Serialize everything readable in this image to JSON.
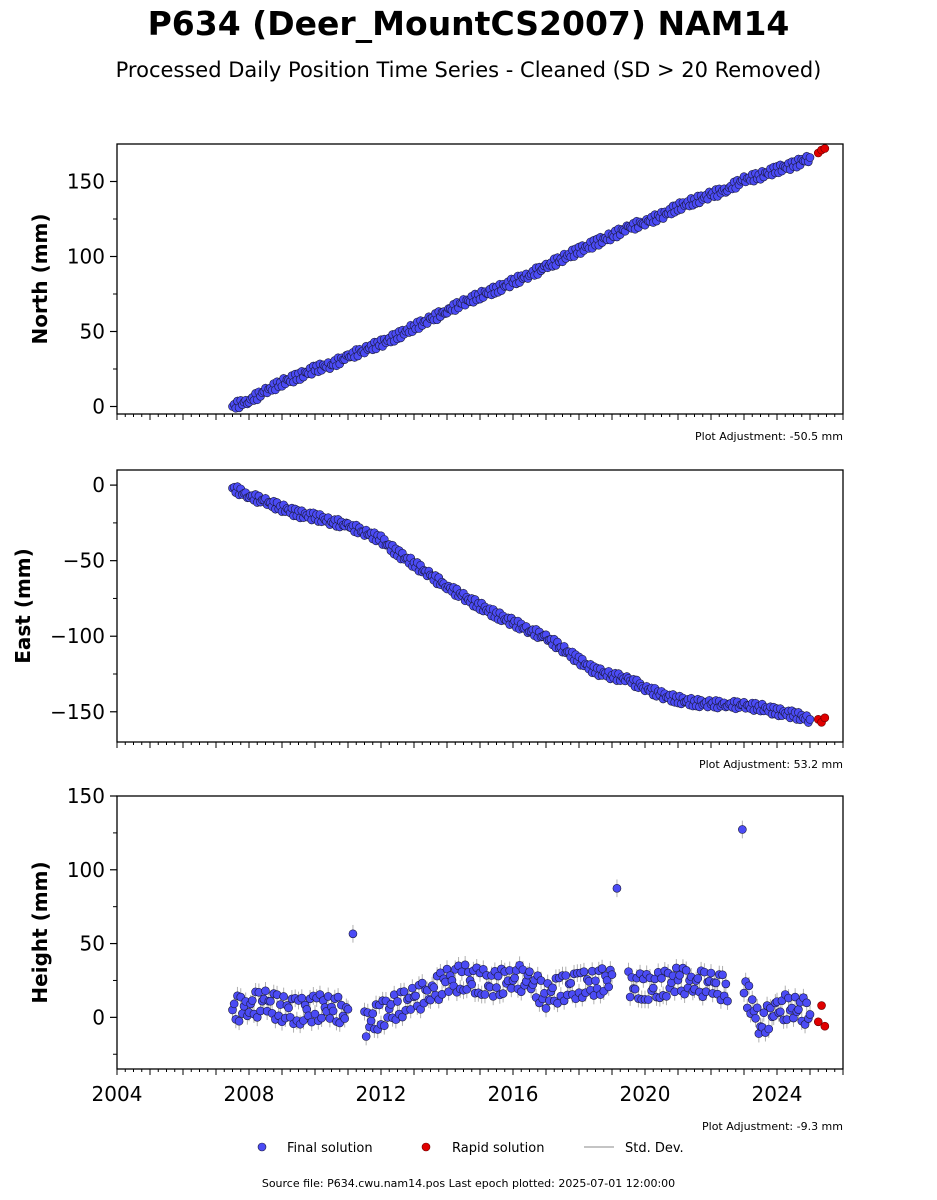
{
  "header": {
    "title": "P634 (Deer_MountCS2007) NAM14",
    "subtitle": "Processed Daily Position Time Series - Cleaned (SD > 20 Removed)"
  },
  "footer": {
    "source_text": "Source file: P634.cwu.nam14.pos  Last epoch plotted: 2025-07-01 12:00:00"
  },
  "colors": {
    "final": "#4b4bf5",
    "rapid": "#e00000",
    "std_dev": "#b0b0b0",
    "marker_edge": "#1a1a3a"
  },
  "legend": {
    "final": "Final solution",
    "rapid": "Rapid solution",
    "std": "Std. Dev."
  },
  "chart_data": [
    {
      "type": "scatter",
      "ylabel": "North (mm)",
      "adjustment": "Plot Adjustment: -50.5 mm",
      "xlim": [
        2004,
        2026
      ],
      "ylim": [
        -5,
        175
      ],
      "yticks": [
        0,
        50,
        100,
        150
      ],
      "ytick_labels": [
        "0",
        "50",
        "100",
        "150"
      ],
      "series": [
        {
          "name": "Final solution",
          "x": [
            2007.5,
            2008.0,
            2008.5,
            2009.0,
            2009.5,
            2010.0,
            2010.5,
            2011.0,
            2011.5,
            2012.0,
            2012.5,
            2013.0,
            2013.5,
            2014.0,
            2014.5,
            2015.0,
            2015.5,
            2016.0,
            2016.5,
            2017.0,
            2017.5,
            2018.0,
            2018.5,
            2019.0,
            2019.5,
            2020.0,
            2020.5,
            2021.0,
            2021.5,
            2022.0,
            2022.5,
            2023.0,
            2023.5,
            2024.0,
            2024.5,
            2025.0
          ],
          "y": [
            0,
            4,
            10,
            16,
            20,
            25,
            28,
            33,
            38,
            42,
            47,
            53,
            58,
            64,
            69,
            74,
            78,
            83,
            88,
            93,
            99,
            104,
            109,
            114,
            119,
            123,
            127,
            133,
            137,
            141,
            145,
            151,
            154,
            158,
            161,
            166
          ]
        },
        {
          "name": "Rapid solution",
          "x": [
            2025.25,
            2025.35,
            2025.45
          ],
          "y": [
            169,
            171,
            172
          ]
        }
      ]
    },
    {
      "type": "scatter",
      "ylabel": "East (mm)",
      "adjustment": "Plot Adjustment: 53.2 mm",
      "xlim": [
        2004,
        2026
      ],
      "ylim": [
        -170,
        10
      ],
      "yticks": [
        0,
        -50,
        -100,
        -150
      ],
      "ytick_labels": [
        "0",
        "−50",
        "−100",
        "−150"
      ],
      "series": [
        {
          "name": "Final solution",
          "x": [
            2007.5,
            2008.0,
            2008.5,
            2009.0,
            2009.5,
            2010.0,
            2010.5,
            2011.0,
            2011.5,
            2012.0,
            2012.5,
            2013.0,
            2013.5,
            2014.0,
            2014.5,
            2015.0,
            2015.5,
            2016.0,
            2016.5,
            2017.0,
            2017.5,
            2018.0,
            2018.5,
            2019.0,
            2019.5,
            2020.0,
            2020.5,
            2021.0,
            2021.5,
            2022.0,
            2022.5,
            2023.0,
            2023.5,
            2024.0,
            2024.5,
            2025.0
          ],
          "y": [
            -2,
            -7,
            -11,
            -15,
            -19,
            -21,
            -24,
            -27,
            -31,
            -36,
            -45,
            -52,
            -60,
            -67,
            -74,
            -80,
            -86,
            -91,
            -96,
            -101,
            -108,
            -116,
            -123,
            -126,
            -129,
            -134,
            -139,
            -142,
            -144,
            -145,
            -145,
            -146,
            -147,
            -150,
            -152,
            -155
          ]
        },
        {
          "name": "Rapid solution",
          "x": [
            2025.25,
            2025.35,
            2025.45
          ],
          "y": [
            -155,
            -157,
            -154
          ]
        }
      ]
    },
    {
      "type": "scatter",
      "ylabel": "Height (mm)",
      "adjustment": "Plot Adjustment: -9.3 mm",
      "xlim": [
        2004,
        2026
      ],
      "ylim": [
        -35,
        150
      ],
      "yticks": [
        0,
        50,
        100,
        150
      ],
      "ytick_labels": [
        "0",
        "50",
        "100",
        "150"
      ],
      "xticks": [
        2004,
        2008,
        2012,
        2016,
        2020,
        2024
      ],
      "xtick_labels": [
        "2004",
        "2008",
        "2012",
        "2016",
        "2020",
        "2024"
      ],
      "series": [
        {
          "name": "Final solution",
          "x": [
            2007.5,
            2008.0,
            2008.5,
            2009.0,
            2009.5,
            2010.0,
            2010.5,
            2011.0,
            2011.15,
            2011.5,
            2012.0,
            2012.5,
            2013.0,
            2013.5,
            2014.0,
            2014.5,
            2015.0,
            2015.5,
            2016.0,
            2016.5,
            2017.0,
            2017.5,
            2018.0,
            2018.5,
            2019.0,
            2019.15,
            2019.5,
            2020.0,
            2020.5,
            2021.0,
            2021.5,
            2022.0,
            2022.5,
            2022.95,
            2023.0,
            2023.5,
            2024.0,
            2024.5,
            2025.0
          ],
          "y": [
            5,
            8,
            10,
            6,
            4,
            6,
            8,
            0,
            65,
            -5,
            2,
            8,
            12,
            18,
            24,
            27,
            24,
            22,
            28,
            24,
            15,
            20,
            22,
            24,
            25,
            95,
            22,
            20,
            22,
            25,
            24,
            22,
            20,
            120,
            20,
            -5,
            5,
            8,
            2
          ]
        },
        {
          "name": "Rapid solution",
          "x": [
            2025.25,
            2025.35,
            2025.45
          ],
          "y": [
            -3,
            8,
            -6
          ]
        }
      ]
    }
  ]
}
